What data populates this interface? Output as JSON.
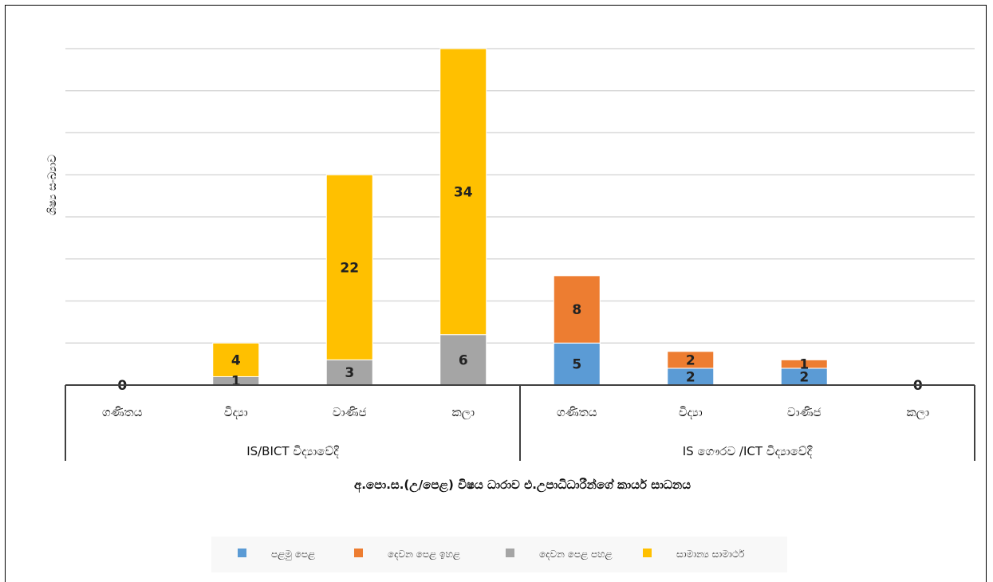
{
  "chart_data": {
    "type": "bar",
    "stacked": true,
    "ylabel": "ශිෂ්‍ය සංඛ්‍යාව",
    "xlabel": "අ.පො.ස.(උ/පෙළ) විෂය ධාරාව එ.උපාධිධාරීන්ගේ කාර්ය සාධනය",
    "ylim": [
      0,
      40
    ],
    "grid": true,
    "groups": [
      {
        "label": "IS/BICT  විද්‍යාවේදී",
        "categories": [
          "ගණිතය",
          "විද්‍යා",
          "වාණිජ",
          "කලා"
        ]
      },
      {
        "label": "IS ගෞරව /ICT විද්‍යාවේදී",
        "categories": [
          "ගණිතය",
          "විද්‍යා",
          "වාණිජ",
          "කලා"
        ]
      }
    ],
    "series": [
      {
        "name": "පළමු පෙළ",
        "color": "#5B9BD5",
        "values": [
          0,
          0,
          0,
          0,
          5,
          2,
          2,
          0
        ]
      },
      {
        "name": "දෙවන පෙළ ඉහළ",
        "color": "#ED7D31",
        "values": [
          0,
          0,
          0,
          0,
          8,
          2,
          1,
          0
        ]
      },
      {
        "name": "දෙවන පෙළ පහළ",
        "color": "#A5A5A5",
        "values": [
          0,
          1,
          3,
          6,
          0,
          0,
          0,
          0
        ]
      },
      {
        "name": "සාමාන්‍ය සාමාර්ථ",
        "color": "#FFC000",
        "values": [
          0,
          4,
          22,
          34,
          0,
          0,
          0,
          0
        ]
      }
    ],
    "data_labels": [
      {
        "text": "0"
      },
      {
        "text": "1"
      },
      {
        "text": "4"
      },
      {
        "text": "3"
      },
      {
        "text": "22"
      },
      {
        "text": "6"
      },
      {
        "text": "34"
      },
      {
        "text": "5"
      },
      {
        "text": "8"
      },
      {
        "text": "2"
      },
      {
        "text": "2"
      },
      {
        "text": "2"
      },
      {
        "text": "1"
      },
      {
        "text": "0"
      }
    ],
    "legend_position": "bottom"
  }
}
